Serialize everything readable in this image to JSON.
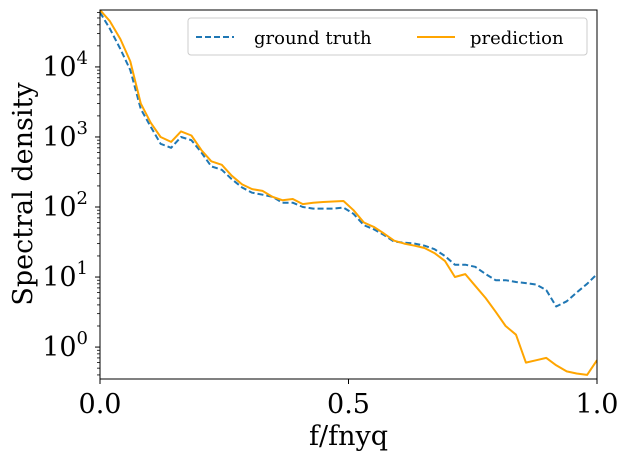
{
  "chart_data": {
    "type": "line",
    "xlabel": "f/fnyq",
    "ylabel": "Spectral density",
    "xlim": [
      0.0,
      1.0
    ],
    "ylim": [
      0.35,
      65000
    ],
    "yscale": "log",
    "x_ticks": [
      {
        "value": 0.0,
        "label": "0.0"
      },
      {
        "value": 0.5,
        "label": "0.5"
      },
      {
        "value": 1.0,
        "label": "1.0"
      }
    ],
    "y_ticks": [
      {
        "value": 1,
        "base": "10",
        "exp": "0"
      },
      {
        "value": 10,
        "base": "10",
        "exp": "1"
      },
      {
        "value": 100,
        "base": "10",
        "exp": "2"
      },
      {
        "value": 1000,
        "base": "10",
        "exp": "3"
      },
      {
        "value": 10000,
        "base": "10",
        "exp": "4"
      }
    ],
    "grid": false,
    "legend_position": "top-right",
    "series": [
      {
        "name": "ground truth",
        "color": "#1f77b4",
        "style": "dashed",
        "x": [
          0.0,
          0.02,
          0.041,
          0.061,
          0.082,
          0.102,
          0.122,
          0.143,
          0.163,
          0.184,
          0.204,
          0.224,
          0.245,
          0.265,
          0.286,
          0.306,
          0.327,
          0.347,
          0.367,
          0.388,
          0.408,
          0.429,
          0.449,
          0.469,
          0.49,
          0.51,
          0.531,
          0.551,
          0.571,
          0.592,
          0.612,
          0.633,
          0.653,
          0.673,
          0.694,
          0.714,
          0.735,
          0.755,
          0.776,
          0.796,
          0.816,
          0.837,
          0.857,
          0.878,
          0.898,
          0.918,
          0.939,
          0.959,
          0.98,
          1.0
        ],
        "values": [
          60000,
          35000,
          18000,
          9000,
          2500,
          1400,
          800,
          700,
          1000,
          900,
          600,
          380,
          340,
          250,
          190,
          160,
          150,
          140,
          115,
          115,
          100,
          95,
          95,
          95,
          98,
          80,
          55,
          48,
          40,
          32,
          31,
          30,
          28,
          25,
          20,
          15,
          15,
          14,
          11,
          9,
          9,
          8.5,
          8.2,
          7.8,
          6.5,
          3.8,
          4.5,
          6.0,
          8.0,
          11
        ]
      },
      {
        "name": "prediction",
        "color": "#ffa500",
        "style": "solid",
        "x": [
          0.0,
          0.02,
          0.041,
          0.061,
          0.082,
          0.102,
          0.122,
          0.143,
          0.163,
          0.184,
          0.204,
          0.224,
          0.245,
          0.265,
          0.286,
          0.306,
          0.327,
          0.347,
          0.367,
          0.388,
          0.408,
          0.429,
          0.449,
          0.469,
          0.49,
          0.51,
          0.531,
          0.551,
          0.571,
          0.592,
          0.612,
          0.633,
          0.653,
          0.673,
          0.694,
          0.714,
          0.735,
          0.755,
          0.776,
          0.796,
          0.816,
          0.837,
          0.857,
          0.878,
          0.898,
          0.918,
          0.939,
          0.959,
          0.98,
          1.0
        ],
        "values": [
          65000,
          45000,
          25000,
          12000,
          3000,
          1600,
          1000,
          850,
          1200,
          1050,
          650,
          450,
          400,
          280,
          210,
          180,
          170,
          140,
          125,
          130,
          110,
          115,
          118,
          120,
          122,
          90,
          60,
          52,
          42,
          33,
          30,
          28,
          26,
          22,
          17,
          10,
          11,
          7.5,
          5,
          3.2,
          2.0,
          1.5,
          0.6,
          0.65,
          0.7,
          0.55,
          0.45,
          0.42,
          0.4,
          0.65
        ]
      }
    ]
  }
}
